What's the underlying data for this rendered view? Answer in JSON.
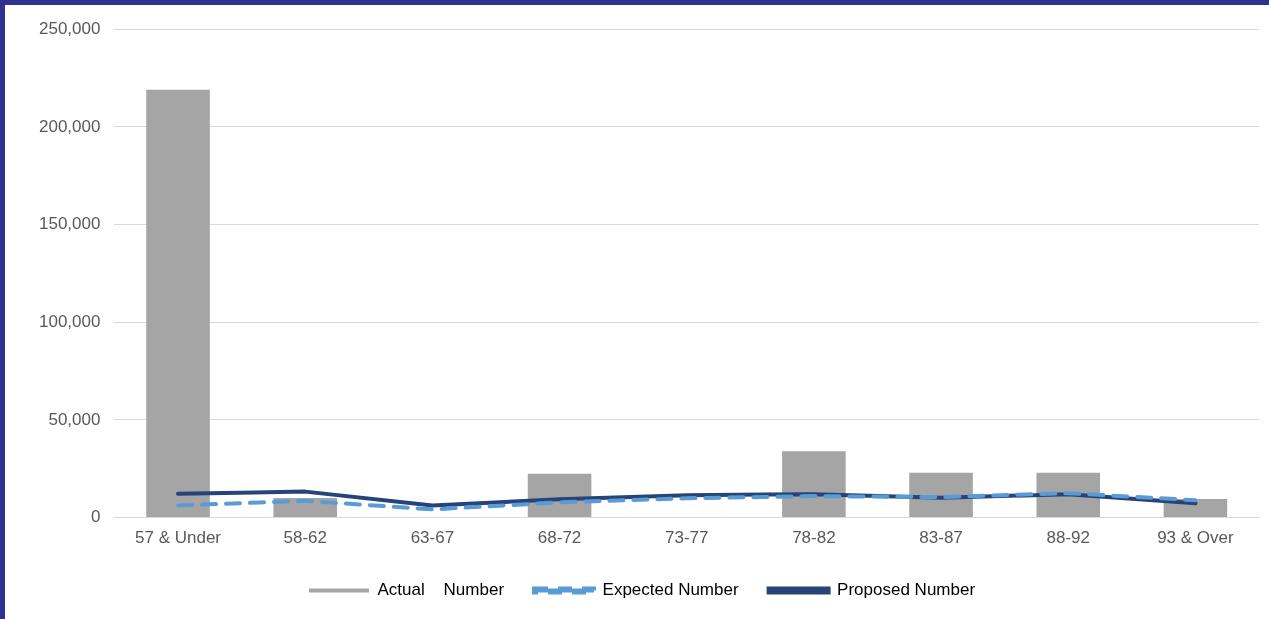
{
  "chart_data": {
    "type": "bar",
    "categories": [
      "57 & Under",
      "58-62",
      "63-67",
      "68-72",
      "73-77",
      "78-82",
      "83-87",
      "88-92",
      "93 & Over"
    ],
    "series": [
      {
        "name": "Actual    Number",
        "color": "#a5a5a5",
        "values": [
          219000,
          10000,
          null,
          22400,
          null,
          34000,
          23000,
          23000,
          9500
        ]
      },
      {
        "name": "Expected Number",
        "type": "line",
        "color": "#5b9bd5",
        "line_style": "dashed",
        "values": [
          6200,
          8600,
          4200,
          7800,
          9900,
          11000,
          10500,
          12500,
          8900
        ]
      },
      {
        "name": "Proposed Number",
        "type": "line",
        "color": "#264478",
        "line_style": "solid",
        "values": [
          12200,
          13300,
          6200,
          9400,
          11500,
          12000,
          10100,
          12000,
          7300
        ]
      }
    ],
    "ylim": [
      0,
      250000
    ],
    "yticks": [
      0,
      {
        "value": 50000,
        "label": "50,000"
      },
      {
        "value": 100000,
        "label": "100,000"
      },
      {
        "value": 150000,
        "label": "150,000"
      },
      {
        "value": 200000,
        "label": "200,000"
      },
      {
        "value": 250000,
        "label": "250,000"
      }
    ],
    "grid": "y",
    "legend": "bottom",
    "marker": "none"
  }
}
